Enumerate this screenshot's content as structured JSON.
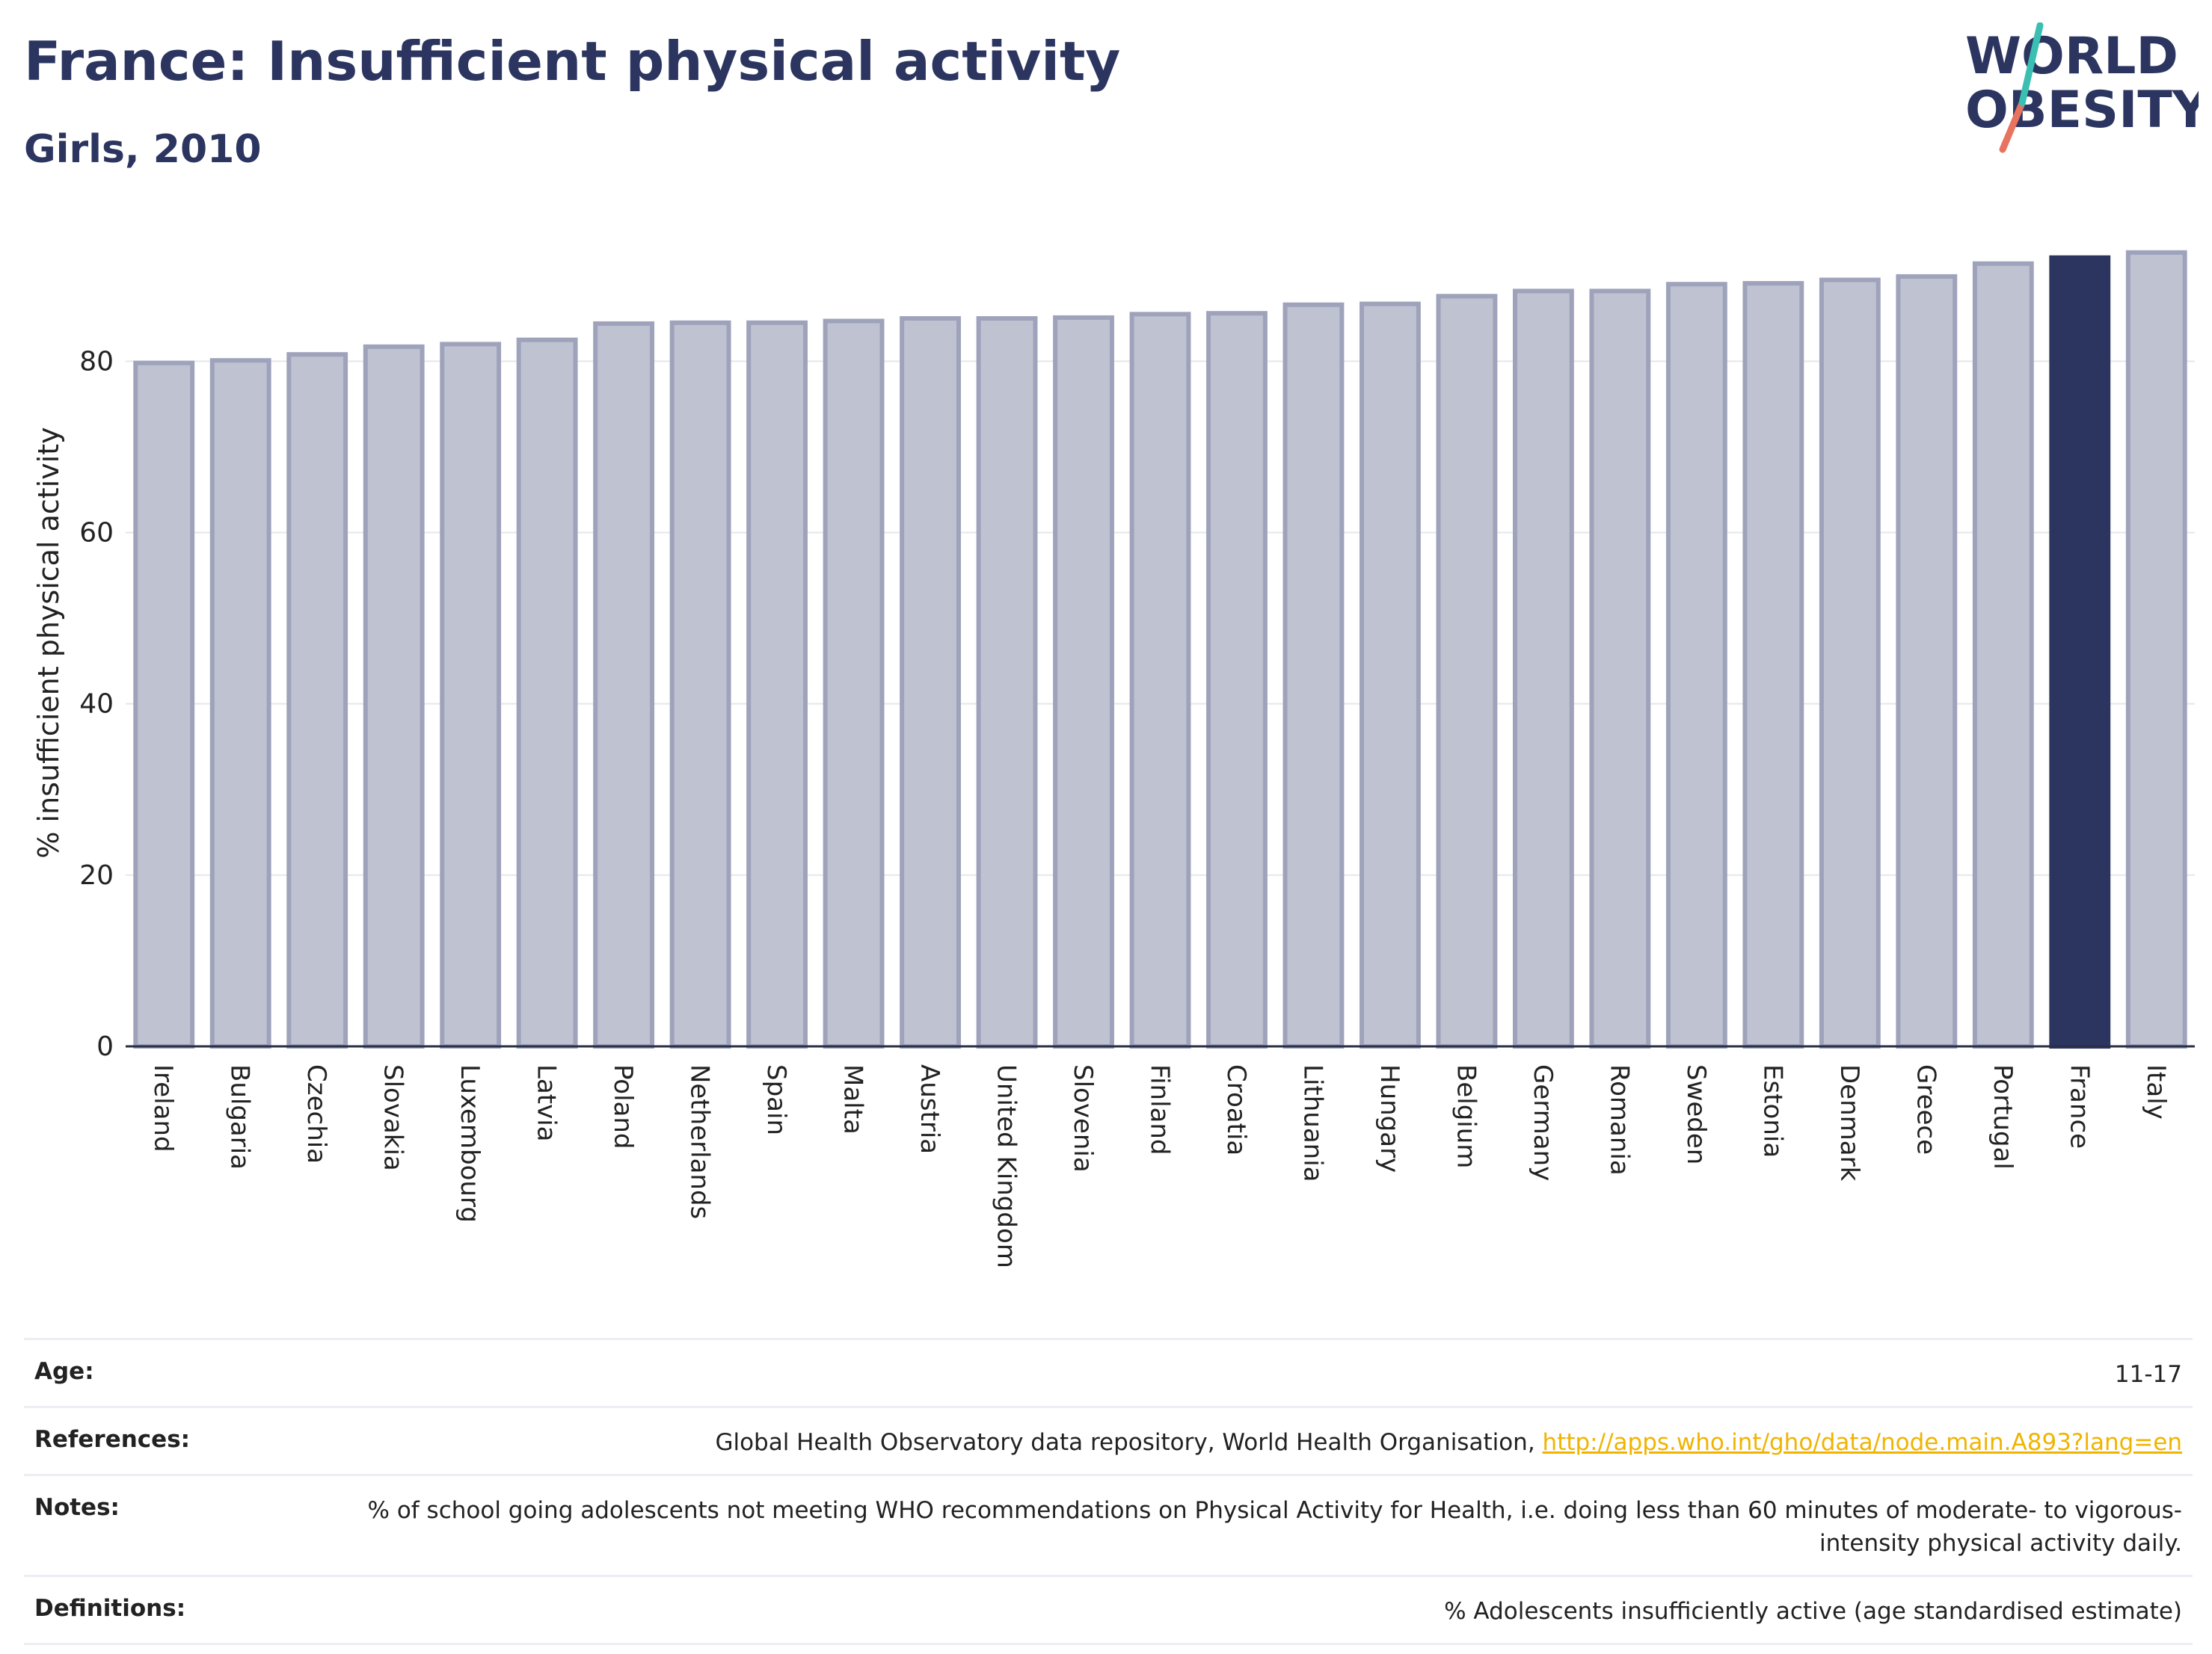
{
  "header": {
    "title": "France: Insufficient physical activity",
    "subtitle": "Girls, 2010"
  },
  "logo": {
    "line1": "WORLD",
    "line2": "OBESITY",
    "accent_teal": "#3bbfb2",
    "accent_coral": "#e8735f"
  },
  "colors": {
    "bar_default": "#bfc2d1",
    "bar_default_stroke": "#9ea3bb",
    "bar_highlight": "#2b3560",
    "text_dark": "#2b3560",
    "link": "#f0b400"
  },
  "chart_data": {
    "type": "bar",
    "title": "France: Insufficient physical activity",
    "subtitle": "Girls, 2010",
    "ylabel": "% insufficient physical activity",
    "xlabel": "",
    "ylim": [
      0,
      96
    ],
    "yticks": [
      0,
      20,
      40,
      60,
      80
    ],
    "grid": true,
    "highlight": "France",
    "categories": [
      "Ireland",
      "Bulgaria",
      "Czechia",
      "Slovakia",
      "Luxembourg",
      "Latvia",
      "Poland",
      "Netherlands",
      "Spain",
      "Malta",
      "Austria",
      "United Kingdom",
      "Slovenia",
      "Finland",
      "Croatia",
      "Lithuania",
      "Hungary",
      "Belgium",
      "Germany",
      "Romania",
      "Sweden",
      "Estonia",
      "Denmark",
      "Greece",
      "Portugal",
      "France",
      "Italy"
    ],
    "values": [
      79.8,
      80.1,
      80.8,
      81.7,
      82.0,
      82.5,
      84.4,
      84.5,
      84.5,
      84.7,
      85.0,
      85.0,
      85.1,
      85.5,
      85.6,
      86.6,
      86.7,
      87.6,
      88.2,
      88.2,
      89.0,
      89.1,
      89.5,
      89.9,
      91.4,
      92.1,
      92.7
    ]
  },
  "info": {
    "age": {
      "label": "Age:",
      "value": "11-17"
    },
    "references": {
      "label": "References:",
      "value": "Global Health Observatory data repository, World Health Organisation,",
      "link": "http://apps.who.int/gho/data/node.main.A893?lang=en"
    },
    "notes": {
      "label": "Notes:",
      "value": "% of school going adolescents not meeting WHO recommendations on Physical Activity for Health, i.e. doing less than 60 minutes of moderate- to vigorous-intensity physical activity daily."
    },
    "definitions": {
      "label": "Definitions:",
      "value": "% Adolescents insufficiently active (age standardised estimate)"
    }
  }
}
